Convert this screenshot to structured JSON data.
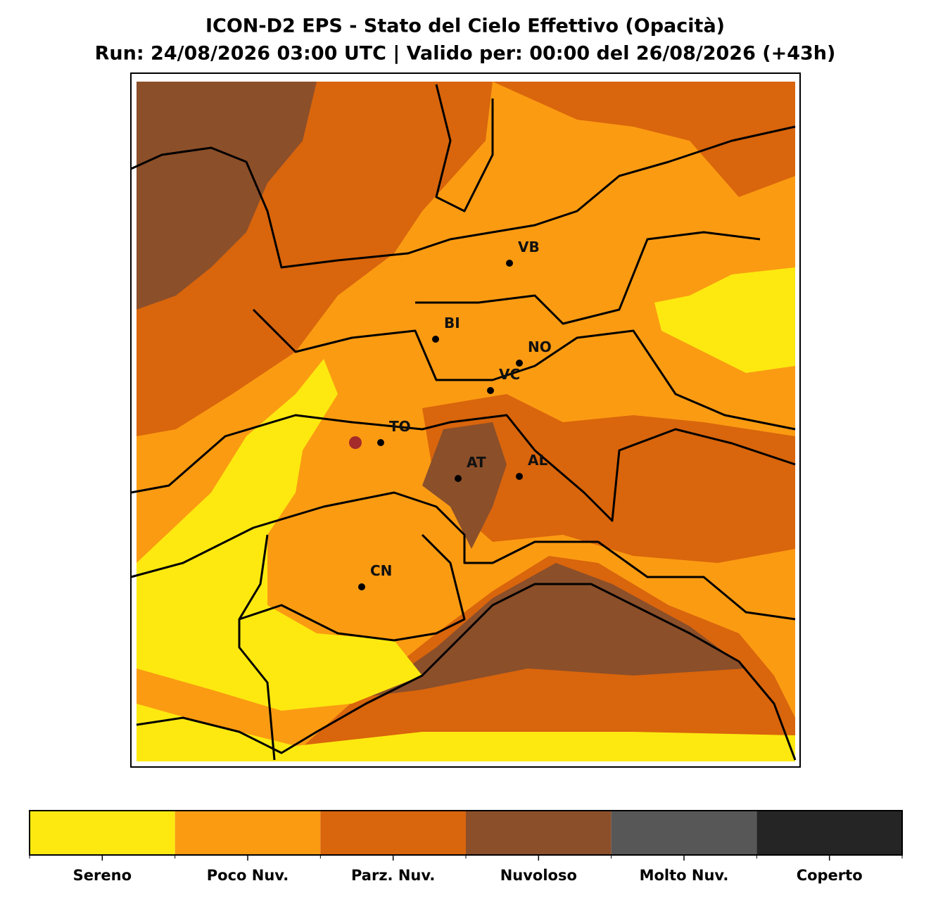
{
  "title": "ICON-D2 EPS - Stato del Cielo Effettivo (Opacità)",
  "subtitle": "Run: 24/08/2026 03:00 UTC | Valido per: 00:00 del 26/08/2026 (+43h)",
  "cities": [
    "VB",
    "BI",
    "NO",
    "VC",
    "TO",
    "AT",
    "AL",
    "CN"
  ],
  "legend": [
    {
      "label": "Sereno",
      "color": "#fde910"
    },
    {
      "label": "Poco Nuv.",
      "color": "#fb9b12"
    },
    {
      "label": "Parz. Nuv.",
      "color": "#d9650c"
    },
    {
      "label": "Nuvoloso",
      "color": "#8b4f2a"
    },
    {
      "label": "Molto Nuv.",
      "color": "#575757"
    },
    {
      "label": "Coperto",
      "color": "#252525"
    }
  ]
}
